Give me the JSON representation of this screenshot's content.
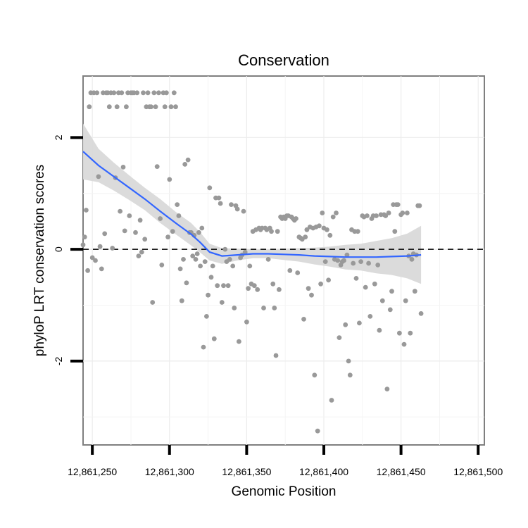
{
  "chart_data": {
    "type": "scatter",
    "title": "Conservation",
    "xlabel": "Genomic Position",
    "ylabel": "phyloP LRT conservation scores",
    "xlim": [
      12861244,
      12861504
    ],
    "ylim": [
      -3.5,
      3.1
    ],
    "x_ticks": [
      12861250,
      12861300,
      12861350,
      12861400,
      12861450,
      12861500
    ],
    "x_tick_labels": [
      "12,861,250",
      "12,861,300",
      "12,861,350",
      "12,861,400",
      "12,861,450",
      "12,861,500"
    ],
    "y_ticks": [
      -2,
      0,
      2
    ],
    "y_tick_labels": [
      "-2",
      "0",
      "2"
    ],
    "y_minor_grid": [
      -3,
      -1,
      1
    ],
    "x_minor_grid": [
      12861275,
      12861325,
      12861375,
      12861425,
      12861475
    ],
    "reference_line": {
      "y": 0,
      "style": "dashed"
    },
    "point_color": "#999999",
    "smooth_color": "#3366ff",
    "band_color": "#d9d9d9",
    "points": [
      [
        12861244,
        0.08
      ],
      [
        12861245,
        0.22
      ],
      [
        12861246,
        0.7
      ],
      [
        12861247,
        -0.38
      ],
      [
        12861248,
        2.55
      ],
      [
        12861249,
        2.8
      ],
      [
        12861250,
        -0.15
      ],
      [
        12861251,
        2.8
      ],
      [
        12861252,
        -0.2
      ],
      [
        12861253,
        2.8
      ],
      [
        12861254,
        1.3
      ],
      [
        12861255,
        0.05
      ],
      [
        12861256,
        -0.35
      ],
      [
        12861257,
        2.8
      ],
      [
        12861258,
        0.28
      ],
      [
        12861259,
        2.8
      ],
      [
        12861260,
        2.8
      ],
      [
        12861261,
        2.55
      ],
      [
        12861262,
        2.8
      ],
      [
        12861263,
        0.02
      ],
      [
        12861264,
        2.8
      ],
      [
        12861265,
        1.28
      ],
      [
        12861266,
        2.55
      ],
      [
        12861267,
        2.8
      ],
      [
        12861268,
        0.68
      ],
      [
        12861269,
        2.8
      ],
      [
        12861270,
        1.47
      ],
      [
        12861271,
        0.33
      ],
      [
        12861272,
        2.55
      ],
      [
        12861273,
        2.8
      ],
      [
        12861274,
        0.6
      ],
      [
        12861275,
        2.8
      ],
      [
        12861276,
        2.8
      ],
      [
        12861277,
        2.8
      ],
      [
        12861278,
        0.3
      ],
      [
        12861279,
        2.8
      ],
      [
        12861280,
        -0.12
      ],
      [
        12861281,
        0.52
      ],
      [
        12861282,
        -0.05
      ],
      [
        12861283,
        2.8
      ],
      [
        12861284,
        0.18
      ],
      [
        12861285,
        2.55
      ],
      [
        12861286,
        2.8
      ],
      [
        12861287,
        2.55
      ],
      [
        12861288,
        2.55
      ],
      [
        12861289,
        -0.95
      ],
      [
        12861290,
        2.8
      ],
      [
        12861291,
        2.55
      ],
      [
        12861292,
        1.48
      ],
      [
        12861293,
        2.8
      ],
      [
        12861294,
        0.55
      ],
      [
        12861295,
        -0.28
      ],
      [
        12861296,
        2.8
      ],
      [
        12861297,
        2.55
      ],
      [
        12861298,
        2.8
      ],
      [
        12861299,
        0.22
      ],
      [
        12861300,
        1.25
      ],
      [
        12861301,
        2.55
      ],
      [
        12861302,
        0.32
      ],
      [
        12861303,
        2.8
      ],
      [
        12861304,
        2.55
      ],
      [
        12861305,
        0.8
      ],
      [
        12861306,
        0.6
      ],
      [
        12861307,
        -0.35
      ],
      [
        12861308,
        -0.92
      ],
      [
        12861309,
        -0.18
      ],
      [
        12861310,
        1.52
      ],
      [
        12861311,
        -0.6
      ],
      [
        12861312,
        1.6
      ],
      [
        12861313,
        0.3
      ],
      [
        12861314,
        0.3
      ],
      [
        12861315,
        -0.12
      ],
      [
        12861316,
        0.25
      ],
      [
        12861317,
        -0.18
      ],
      [
        12861318,
        -0.08
      ],
      [
        12861319,
        0.3
      ],
      [
        12861320,
        -0.3
      ],
      [
        12861321,
        0.38
      ],
      [
        12861322,
        -1.75
      ],
      [
        12861323,
        -0.22
      ],
      [
        12861324,
        -1.2
      ],
      [
        12861325,
        -0.82
      ],
      [
        12861326,
        1.1
      ],
      [
        12861327,
        -0.5
      ],
      [
        12861328,
        -0.3
      ],
      [
        12861329,
        -1.6
      ],
      [
        12861330,
        0.92
      ],
      [
        12861331,
        -0.65
      ],
      [
        12861332,
        0.92
      ],
      [
        12861333,
        0.82
      ],
      [
        12861334,
        -0.95
      ],
      [
        12861335,
        -0.65
      ],
      [
        12861336,
        0.0
      ],
      [
        12861337,
        -0.22
      ],
      [
        12861338,
        -0.65
      ],
      [
        12861339,
        -0.18
      ],
      [
        12861340,
        0.8
      ],
      [
        12861341,
        -0.3
      ],
      [
        12861342,
        -1.05
      ],
      [
        12861343,
        0.78
      ],
      [
        12861344,
        0.72
      ],
      [
        12861345,
        -1.65
      ],
      [
        12861346,
        -0.15
      ],
      [
        12861347,
        -0.1
      ],
      [
        12861348,
        0.68
      ],
      [
        12861349,
        -0.05
      ],
      [
        12861350,
        -1.3
      ],
      [
        12861351,
        -0.7
      ],
      [
        12861352,
        -0.3
      ],
      [
        12861353,
        -0.62
      ],
      [
        12861354,
        0.32
      ],
      [
        12861355,
        -0.65
      ],
      [
        12861356,
        0.35
      ],
      [
        12861357,
        -0.72
      ],
      [
        12861358,
        0.38
      ],
      [
        12861359,
        0.35
      ],
      [
        12861360,
        0.38
      ],
      [
        12861361,
        -1.05
      ],
      [
        12861362,
        0.38
      ],
      [
        12861363,
        0.35
      ],
      [
        12861364,
        -0.18
      ],
      [
        12861365,
        0.38
      ],
      [
        12861366,
        0.32
      ],
      [
        12861367,
        -0.62
      ],
      [
        12861368,
        -1.05
      ],
      [
        12861369,
        -1.9
      ],
      [
        12861370,
        0.32
      ],
      [
        12861371,
        -0.72
      ],
      [
        12861372,
        0.58
      ],
      [
        12861373,
        0.55
      ],
      [
        12861374,
        0.58
      ],
      [
        12861375,
        0.55
      ],
      [
        12861376,
        0.6
      ],
      [
        12861377,
        0.6
      ],
      [
        12861378,
        -0.38
      ],
      [
        12861379,
        0.58
      ],
      [
        12861380,
        0.55
      ],
      [
        12861381,
        0.52
      ],
      [
        12861382,
        0.55
      ],
      [
        12861383,
        -0.42
      ],
      [
        12861384,
        0.22
      ],
      [
        12861385,
        0.2
      ],
      [
        12861386,
        0.18
      ],
      [
        12861387,
        -1.25
      ],
      [
        12861388,
        0.22
      ],
      [
        12861389,
        0.35
      ],
      [
        12861390,
        -0.7
      ],
      [
        12861391,
        0.4
      ],
      [
        12861392,
        -0.82
      ],
      [
        12861393,
        0.38
      ],
      [
        12861394,
        -2.25
      ],
      [
        12861395,
        0.4
      ],
      [
        12861396,
        -3.25
      ],
      [
        12861397,
        0.42
      ],
      [
        12861398,
        -0.62
      ],
      [
        12861399,
        0.65
      ],
      [
        12861400,
        0.38
      ],
      [
        12861401,
        -0.22
      ],
      [
        12861402,
        0.35
      ],
      [
        12861403,
        -0.55
      ],
      [
        12861404,
        0.25
      ],
      [
        12861405,
        -2.7
      ],
      [
        12861406,
        0.58
      ],
      [
        12861407,
        -0.18
      ],
      [
        12861408,
        0.65
      ],
      [
        12861409,
        -0.2
      ],
      [
        12861410,
        -1.58
      ],
      [
        12861411,
        -0.28
      ],
      [
        12861412,
        -0.22
      ],
      [
        12861413,
        -0.2
      ],
      [
        12861414,
        -1.35
      ],
      [
        12861415,
        -0.1
      ],
      [
        12861416,
        -2.0
      ],
      [
        12861417,
        -2.25
      ],
      [
        12861418,
        0.35
      ],
      [
        12861419,
        -0.25
      ],
      [
        12861420,
        0.32
      ],
      [
        12861421,
        -0.52
      ],
      [
        12861422,
        0.32
      ],
      [
        12861423,
        -1.32
      ],
      [
        12861424,
        -0.22
      ],
      [
        12861425,
        0.6
      ],
      [
        12861426,
        0.58
      ],
      [
        12861427,
        -0.68
      ],
      [
        12861428,
        0.6
      ],
      [
        12861429,
        -0.25
      ],
      [
        12861430,
        -1.2
      ],
      [
        12861431,
        0.55
      ],
      [
        12861432,
        0.6
      ],
      [
        12861433,
        -0.62
      ],
      [
        12861434,
        0.6
      ],
      [
        12861435,
        -0.28
      ],
      [
        12861436,
        -1.45
      ],
      [
        12861437,
        0.62
      ],
      [
        12861438,
        -0.92
      ],
      [
        12861439,
        0.62
      ],
      [
        12861440,
        0.6
      ],
      [
        12861441,
        -2.5
      ],
      [
        12861442,
        0.65
      ],
      [
        12861443,
        -1.08
      ],
      [
        12861444,
        -0.75
      ],
      [
        12861445,
        0.8
      ],
      [
        12861446,
        0.32
      ],
      [
        12861447,
        0.8
      ],
      [
        12861448,
        0.8
      ],
      [
        12861449,
        -1.5
      ],
      [
        12861450,
        0.62
      ],
      [
        12861451,
        0.65
      ],
      [
        12861452,
        -1.7
      ],
      [
        12861453,
        -0.92
      ],
      [
        12861454,
        0.65
      ],
      [
        12861455,
        -0.12
      ],
      [
        12861456,
        -1.5
      ],
      [
        12861457,
        -0.18
      ],
      [
        12861458,
        -0.08
      ],
      [
        12861459,
        -0.75
      ],
      [
        12861460,
        -0.1
      ],
      [
        12861461,
        0.78
      ],
      [
        12861462,
        0.78
      ],
      [
        12861463,
        -1.15
      ]
    ],
    "smooth_fit": {
      "x": [
        12861244,
        12861254,
        12861264,
        12861274,
        12861284,
        12861294,
        12861304,
        12861314,
        12861320,
        12861326,
        12861334,
        12861344,
        12861354,
        12861364,
        12861374,
        12861384,
        12861394,
        12861404,
        12861414,
        12861424,
        12861434,
        12861444,
        12861454,
        12861463
      ],
      "y": [
        1.75,
        1.5,
        1.3,
        1.1,
        0.9,
        0.68,
        0.47,
        0.27,
        0.12,
        -0.05,
        -0.12,
        -0.1,
        -0.08,
        -0.08,
        -0.09,
        -0.1,
        -0.12,
        -0.13,
        -0.14,
        -0.14,
        -0.14,
        -0.13,
        -0.12,
        -0.1
      ],
      "upper": [
        2.25,
        1.8,
        1.55,
        1.32,
        1.1,
        0.9,
        0.67,
        0.47,
        0.3,
        0.1,
        0.02,
        0.01,
        0.0,
        0.0,
        0.01,
        0.02,
        0.03,
        0.05,
        0.08,
        0.1,
        0.15,
        0.2,
        0.28,
        0.42
      ],
      "lower": [
        1.25,
        1.2,
        1.05,
        0.88,
        0.7,
        0.47,
        0.27,
        0.07,
        -0.06,
        -0.2,
        -0.26,
        -0.2,
        -0.16,
        -0.16,
        -0.19,
        -0.22,
        -0.27,
        -0.31,
        -0.36,
        -0.38,
        -0.43,
        -0.46,
        -0.52,
        -0.62
      ]
    }
  }
}
